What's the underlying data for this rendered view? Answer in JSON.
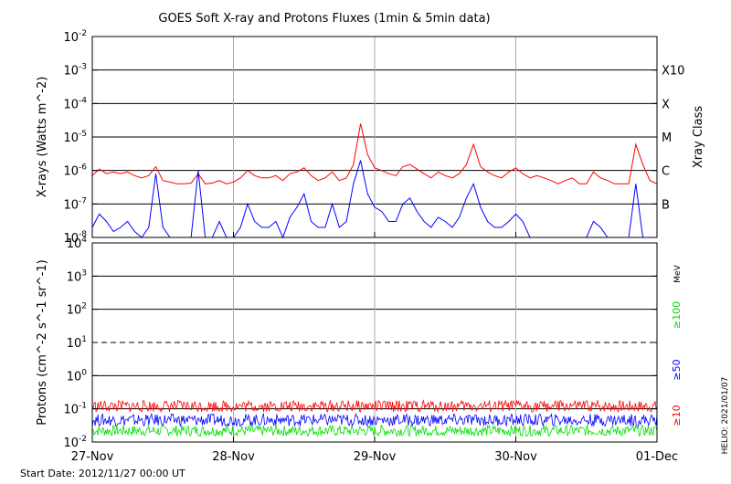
{
  "chart_data": [
    {
      "type": "line",
      "title": "GOES Soft X-ray and Protons Fluxes   (1min & 5min data)",
      "ylabel": "X-rays (Watts m^-2)",
      "yscale": "log",
      "ylim": [
        1e-08,
        0.01
      ],
      "y_tick_labels": [
        {
          "base": "10",
          "exp": "-8"
        },
        {
          "base": "10",
          "exp": "-7"
        },
        {
          "base": "10",
          "exp": "-6"
        },
        {
          "base": "10",
          "exp": "-5"
        },
        {
          "base": "10",
          "exp": "-4"
        },
        {
          "base": "10",
          "exp": "-3"
        },
        {
          "base": "10",
          "exp": "-2"
        }
      ],
      "right_axis_label": "Xray Class",
      "class_labels": [
        {
          "label": "X10",
          "value": 0.001
        },
        {
          "label": "X",
          "value": 0.0001
        },
        {
          "label": "M",
          "value": 1e-05
        },
        {
          "label": "C",
          "value": 1e-06
        },
        {
          "label": "B",
          "value": 1e-07
        }
      ],
      "grid_lines_y": [
        1e-07,
        1e-06,
        1e-05,
        0.0001,
        0.001
      ],
      "xlim_days": [
        0,
        4
      ],
      "series": [
        {
          "color": "#ff0000",
          "x_days": [
            0.0,
            0.05,
            0.1,
            0.15,
            0.2,
            0.25,
            0.3,
            0.35,
            0.4,
            0.45,
            0.5,
            0.55,
            0.6,
            0.65,
            0.7,
            0.75,
            0.8,
            0.85,
            0.9,
            0.95,
            1.0,
            1.05,
            1.1,
            1.15,
            1.2,
            1.25,
            1.3,
            1.35,
            1.4,
            1.45,
            1.5,
            1.55,
            1.6,
            1.65,
            1.7,
            1.75,
            1.8,
            1.85,
            1.9,
            1.95,
            2.0,
            2.05,
            2.1,
            2.15,
            2.2,
            2.25,
            2.3,
            2.35,
            2.4,
            2.45,
            2.5,
            2.55,
            2.6,
            2.65,
            2.7,
            2.75,
            2.8,
            2.85,
            2.9,
            2.95,
            3.0,
            3.05,
            3.1,
            3.15,
            3.2,
            3.25,
            3.3,
            3.35,
            3.4,
            3.45,
            3.5,
            3.55,
            3.6,
            3.65,
            3.7,
            3.75,
            3.8,
            3.85,
            3.9,
            3.95,
            4.0
          ],
          "values": [
            7e-07,
            1.1e-06,
            8e-07,
            9e-07,
            8e-07,
            9e-07,
            7e-07,
            6e-07,
            7e-07,
            1.3e-06,
            5e-07,
            4.5e-07,
            4e-07,
            4e-07,
            4.2e-07,
            8e-07,
            4e-07,
            4.2e-07,
            5e-07,
            4e-07,
            4.5e-07,
            6e-07,
            1e-06,
            7e-07,
            6e-07,
            6e-07,
            7e-07,
            5e-07,
            8e-07,
            9e-07,
            1.2e-06,
            7e-07,
            5e-07,
            6e-07,
            9e-07,
            5e-07,
            6e-07,
            1.5e-06,
            2.5e-05,
            3e-06,
            1.2e-06,
            1e-06,
            8e-07,
            7e-07,
            1.3e-06,
            1.5e-06,
            1.1e-06,
            8e-07,
            6e-07,
            9e-07,
            7e-07,
            6e-07,
            8e-07,
            1.5e-06,
            6e-06,
            1.3e-06,
            9e-07,
            7e-07,
            6e-07,
            9e-07,
            1.2e-06,
            8e-07,
            6e-07,
            7e-07,
            6e-07,
            5e-07,
            4e-07,
            5e-07,
            6e-07,
            4e-07,
            4e-07,
            9e-07,
            6e-07,
            5e-07,
            4e-07,
            4e-07,
            4e-07,
            6e-06,
            1.5e-06,
            5e-07,
            4e-07
          ]
        },
        {
          "color": "#0000ff",
          "x_days": [
            0.0,
            0.05,
            0.1,
            0.15,
            0.2,
            0.25,
            0.3,
            0.35,
            0.4,
            0.45,
            0.5,
            0.55,
            0.6,
            0.65,
            0.7,
            0.75,
            0.8,
            0.85,
            0.9,
            0.95,
            1.0,
            1.05,
            1.1,
            1.15,
            1.2,
            1.25,
            1.3,
            1.35,
            1.4,
            1.45,
            1.5,
            1.55,
            1.6,
            1.65,
            1.7,
            1.75,
            1.8,
            1.85,
            1.9,
            1.95,
            2.0,
            2.05,
            2.1,
            2.15,
            2.2,
            2.25,
            2.3,
            2.35,
            2.4,
            2.45,
            2.5,
            2.55,
            2.6,
            2.65,
            2.7,
            2.75,
            2.8,
            2.85,
            2.9,
            2.95,
            3.0,
            3.05,
            3.1,
            3.15,
            3.2,
            3.25,
            3.3,
            3.35,
            3.4,
            3.45,
            3.5,
            3.55,
            3.6,
            3.65,
            3.7,
            3.75,
            3.8,
            3.85,
            3.9,
            3.95,
            4.0
          ],
          "values": [
            2e-08,
            5e-08,
            3e-08,
            1.5e-08,
            2e-08,
            3e-08,
            1.5e-08,
            1e-08,
            2e-08,
            8e-07,
            2e-08,
            1e-08,
            1e-08,
            1e-08,
            1e-08,
            1e-06,
            1e-08,
            1e-08,
            3e-08,
            1e-08,
            1e-08,
            2e-08,
            1e-07,
            3e-08,
            2e-08,
            2e-08,
            3e-08,
            1e-08,
            4e-08,
            8e-08,
            2e-07,
            3e-08,
            2e-08,
            2e-08,
            1e-07,
            2e-08,
            3e-08,
            4e-07,
            2e-06,
            2e-07,
            8e-08,
            6e-08,
            3e-08,
            3e-08,
            1e-07,
            1.5e-07,
            6e-08,
            3e-08,
            2e-08,
            4e-08,
            3e-08,
            2e-08,
            4e-08,
            1.5e-07,
            4e-07,
            8e-08,
            3e-08,
            2e-08,
            2e-08,
            3e-08,
            5e-08,
            3e-08,
            1e-08,
            1e-08,
            1e-08,
            1e-08,
            1e-08,
            1e-08,
            1e-08,
            1e-08,
            1e-08,
            3e-08,
            2e-08,
            1e-08,
            1e-08,
            1e-08,
            1e-08,
            4e-07,
            1e-08,
            1e-08,
            1e-08
          ]
        }
      ]
    },
    {
      "type": "line",
      "ylabel": "Protons (cm^-2 s^-1 sr^-1)",
      "yscale": "log",
      "ylim": [
        0.01,
        10000
      ],
      "y_tick_labels": [
        {
          "base": "10",
          "exp": "-2"
        },
        {
          "base": "10",
          "exp": "-1"
        },
        {
          "base": "10",
          "exp": "0"
        },
        {
          "base": "10",
          "exp": "1"
        },
        {
          "base": "10",
          "exp": "2"
        },
        {
          "base": "10",
          "exp": "3"
        },
        {
          "base": "10",
          "exp": "4"
        }
      ],
      "grid_lines_y": [
        0.1,
        1,
        100,
        1000
      ],
      "dashed_threshold": 10,
      "right_axis_label": "MeV",
      "series": [
        {
          "name": "≥100",
          "color": "#00dd00",
          "band": [
            0.015,
            0.032
          ]
        },
        {
          "name": "≥50",
          "color": "#0000ff",
          "band": [
            0.03,
            0.07
          ]
        },
        {
          "name": "≥10",
          "color": "#ff0000",
          "band": [
            0.08,
            0.18
          ]
        }
      ],
      "x_tick_labels": [
        "27-Nov",
        "28-Nov",
        "29-Nov",
        "30-Nov",
        "01-Dec"
      ]
    }
  ],
  "footer": {
    "start_date": "Start Date: 2012/11/27 00:00 UT",
    "credit": "HELIO: 2021/01/07"
  }
}
